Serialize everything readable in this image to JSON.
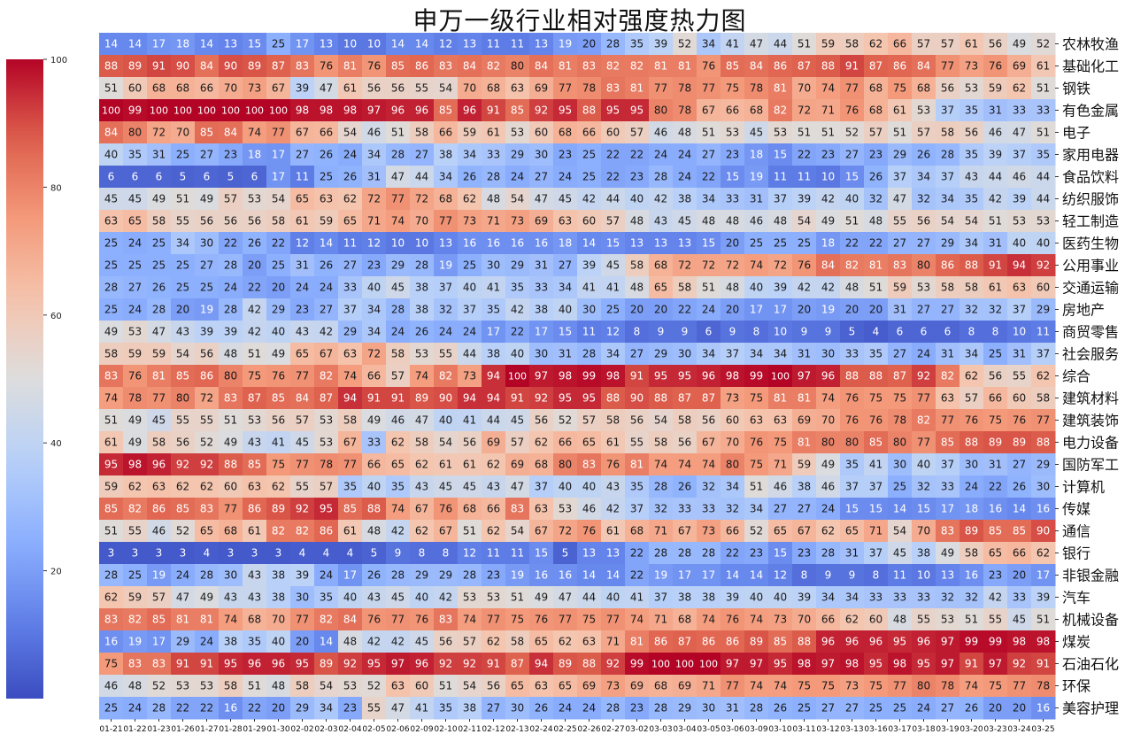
{
  "chart_data": {
    "type": "heatmap",
    "title": "申万一级行业相对强度热力图",
    "xlabel": "",
    "ylabel": "",
    "colormap": "coolwarm",
    "color_range": [
      0,
      100
    ],
    "colorbar_ticks": [
      20,
      40,
      60,
      80,
      100
    ],
    "x": [
      "01-21",
      "01-22",
      "01-23",
      "01-26",
      "01-27",
      "01-28",
      "01-29",
      "01-30",
      "02-02",
      "02-03",
      "02-04",
      "02-05",
      "02-06",
      "02-09",
      "02-10",
      "02-11",
      "02-12",
      "02-13",
      "02-24",
      "02-25",
      "02-26",
      "02-27",
      "03-02",
      "03-03",
      "03-04",
      "03-05",
      "03-06",
      "03-09",
      "03-10",
      "03-11",
      "03-12",
      "03-13",
      "03-16",
      "03-17",
      "03-18",
      "03-19",
      "03-20",
      "03-23",
      "03-24",
      "03-25"
    ],
    "y": [
      "农林牧渔",
      "基础化工",
      "钢铁",
      "有色金属",
      "电子",
      "家用电器",
      "食品饮料",
      "纺织服饰",
      "轻工制造",
      "医药生物",
      "公用事业",
      "交通运输",
      "房地产",
      "商贸零售",
      "社会服务",
      "综合",
      "建筑材料",
      "建筑装饰",
      "电力设备",
      "国防军工",
      "计算机",
      "传媒",
      "通信",
      "银行",
      "非银金融",
      "汽车",
      "机械设备",
      "煤炭",
      "石油石化",
      "环保",
      "美容护理"
    ],
    "values": [
      [
        14,
        14,
        17,
        18,
        14,
        13,
        15,
        25,
        17,
        13,
        10,
        10,
        14,
        14,
        12,
        13,
        11,
        11,
        13,
        19,
        20,
        28,
        35,
        39,
        52,
        34,
        41,
        47,
        44,
        51,
        59,
        58,
        62,
        66,
        57,
        57,
        61,
        56,
        49,
        52
      ],
      [
        88,
        89,
        91,
        90,
        84,
        90,
        89,
        87,
        83,
        76,
        81,
        76,
        85,
        86,
        83,
        84,
        82,
        80,
        84,
        81,
        83,
        82,
        82,
        81,
        81,
        76,
        85,
        84,
        86,
        87,
        88,
        91,
        87,
        86,
        84,
        77,
        73,
        76,
        69,
        61
      ],
      [
        51,
        60,
        68,
        68,
        66,
        70,
        73,
        67,
        39,
        47,
        61,
        56,
        56,
        55,
        54,
        70,
        68,
        63,
        69,
        77,
        78,
        83,
        81,
        77,
        78,
        77,
        75,
        78,
        81,
        70,
        74,
        77,
        68,
        75,
        68,
        56,
        53,
        59,
        62,
        51
      ],
      [
        100,
        99,
        100,
        100,
        100,
        100,
        100,
        100,
        98,
        98,
        98,
        97,
        96,
        96,
        85,
        96,
        91,
        85,
        92,
        95,
        88,
        95,
        95,
        80,
        78,
        67,
        66,
        68,
        82,
        72,
        71,
        76,
        68,
        61,
        53,
        37,
        35,
        31,
        33,
        33
      ],
      [
        84,
        80,
        72,
        70,
        85,
        84,
        74,
        77,
        67,
        66,
        54,
        46,
        51,
        58,
        66,
        59,
        61,
        53,
        60,
        68,
        66,
        60,
        57,
        46,
        48,
        51,
        53,
        45,
        53,
        51,
        51,
        52,
        57,
        51,
        57,
        58,
        56,
        46,
        47,
        51
      ],
      [
        40,
        35,
        31,
        25,
        27,
        23,
        18,
        17,
        27,
        26,
        24,
        34,
        28,
        27,
        38,
        34,
        33,
        29,
        30,
        23,
        25,
        22,
        22,
        24,
        24,
        27,
        23,
        18,
        15,
        22,
        23,
        27,
        23,
        29,
        26,
        28,
        35,
        39,
        37,
        35
      ],
      [
        6,
        6,
        6,
        5,
        6,
        5,
        6,
        17,
        11,
        25,
        26,
        31,
        47,
        44,
        34,
        26,
        28,
        24,
        27,
        24,
        25,
        22,
        23,
        28,
        24,
        22,
        15,
        19,
        11,
        11,
        10,
        15,
        26,
        37,
        34,
        37,
        43,
        44,
        46,
        44
      ],
      [
        45,
        45,
        49,
        51,
        49,
        57,
        53,
        54,
        65,
        63,
        62,
        72,
        77,
        72,
        68,
        62,
        48,
        54,
        47,
        45,
        42,
        44,
        40,
        42,
        38,
        34,
        33,
        31,
        37,
        39,
        42,
        40,
        32,
        47,
        32,
        34,
        35,
        42,
        39,
        44
      ],
      [
        63,
        65,
        58,
        55,
        56,
        56,
        56,
        58,
        61,
        59,
        65,
        71,
        74,
        70,
        77,
        73,
        71,
        73,
        69,
        63,
        60,
        57,
        48,
        43,
        45,
        48,
        48,
        46,
        48,
        54,
        49,
        51,
        48,
        55,
        56,
        54,
        54,
        51,
        53,
        53
      ],
      [
        25,
        24,
        25,
        34,
        30,
        22,
        26,
        22,
        12,
        14,
        11,
        12,
        10,
        10,
        13,
        16,
        16,
        16,
        16,
        18,
        14,
        15,
        13,
        13,
        13,
        15,
        20,
        25,
        25,
        25,
        18,
        22,
        22,
        27,
        27,
        29,
        34,
        31,
        40,
        40
      ],
      [
        25,
        25,
        25,
        25,
        27,
        28,
        20,
        25,
        31,
        26,
        27,
        23,
        29,
        28,
        19,
        25,
        30,
        29,
        31,
        27,
        39,
        45,
        58,
        68,
        72,
        72,
        72,
        74,
        72,
        76,
        84,
        82,
        81,
        83,
        80,
        86,
        88,
        91,
        94,
        92
      ],
      [
        28,
        27,
        26,
        25,
        25,
        24,
        22,
        20,
        24,
        24,
        33,
        40,
        45,
        38,
        37,
        40,
        41,
        35,
        33,
        34,
        41,
        41,
        48,
        65,
        58,
        51,
        48,
        40,
        39,
        42,
        42,
        48,
        51,
        59,
        53,
        58,
        58,
        61,
        63,
        60
      ],
      [
        25,
        24,
        28,
        20,
        19,
        28,
        42,
        29,
        23,
        27,
        37,
        34,
        28,
        38,
        32,
        37,
        35,
        42,
        38,
        40,
        30,
        25,
        20,
        20,
        22,
        24,
        20,
        17,
        17,
        20,
        19,
        20,
        20,
        31,
        27,
        27,
        32,
        32,
        37,
        29
      ],
      [
        49,
        53,
        47,
        43,
        39,
        39,
        42,
        40,
        43,
        42,
        29,
        34,
        24,
        26,
        24,
        24,
        17,
        22,
        17,
        15,
        11,
        12,
        8,
        9,
        9,
        6,
        9,
        8,
        10,
        9,
        9,
        5,
        4,
        6,
        6,
        6,
        8,
        8,
        10,
        11
      ],
      [
        58,
        59,
        59,
        54,
        56,
        48,
        51,
        49,
        65,
        67,
        63,
        72,
        58,
        53,
        55,
        44,
        38,
        40,
        30,
        31,
        28,
        34,
        27,
        29,
        30,
        34,
        37,
        34,
        34,
        31,
        30,
        33,
        35,
        27,
        24,
        31,
        34,
        25,
        31,
        37
      ],
      [
        83,
        76,
        81,
        85,
        86,
        80,
        75,
        76,
        77,
        82,
        74,
        66,
        57,
        74,
        82,
        73,
        94,
        100,
        97,
        98,
        99,
        98,
        91,
        95,
        95,
        96,
        98,
        99,
        100,
        97,
        96,
        88,
        88,
        87,
        92,
        82,
        62,
        56,
        55,
        62
      ],
      [
        74,
        78,
        77,
        80,
        72,
        83,
        87,
        85,
        84,
        87,
        94,
        91,
        91,
        89,
        90,
        94,
        94,
        91,
        92,
        95,
        95,
        88,
        90,
        88,
        87,
        87,
        73,
        75,
        81,
        81,
        74,
        76,
        75,
        75,
        77,
        63,
        57,
        66,
        60,
        58
      ],
      [
        51,
        49,
        45,
        55,
        55,
        51,
        53,
        56,
        57,
        53,
        58,
        49,
        46,
        47,
        40,
        41,
        44,
        45,
        56,
        52,
        57,
        58,
        56,
        54,
        58,
        56,
        60,
        63,
        63,
        69,
        70,
        76,
        76,
        78,
        82,
        77,
        76,
        75,
        76,
        77
      ],
      [
        61,
        49,
        58,
        56,
        52,
        49,
        43,
        41,
        45,
        53,
        67,
        33,
        62,
        58,
        54,
        56,
        69,
        57,
        62,
        66,
        65,
        61,
        55,
        58,
        56,
        67,
        70,
        76,
        75,
        81,
        80,
        80,
        85,
        80,
        77,
        85,
        88,
        89,
        89,
        88
      ],
      [
        95,
        98,
        96,
        92,
        92,
        88,
        85,
        75,
        77,
        78,
        77,
        66,
        65,
        62,
        61,
        61,
        62,
        69,
        68,
        80,
        83,
        76,
        81,
        74,
        74,
        74,
        80,
        75,
        71,
        59,
        49,
        35,
        41,
        30,
        40,
        37,
        30,
        31,
        27,
        29
      ],
      [
        59,
        62,
        63,
        62,
        62,
        60,
        63,
        62,
        55,
        57,
        35,
        40,
        35,
        43,
        45,
        45,
        43,
        47,
        37,
        40,
        40,
        43,
        35,
        28,
        26,
        32,
        34,
        51,
        46,
        38,
        46,
        37,
        37,
        25,
        32,
        33,
        24,
        22,
        26,
        30
      ],
      [
        85,
        82,
        86,
        85,
        83,
        77,
        86,
        89,
        92,
        95,
        85,
        88,
        74,
        67,
        76,
        68,
        66,
        83,
        63,
        53,
        46,
        42,
        37,
        32,
        33,
        33,
        32,
        34,
        27,
        27,
        24,
        15,
        15,
        14,
        15,
        17,
        18,
        16,
        14,
        16
      ],
      [
        51,
        55,
        46,
        52,
        65,
        68,
        61,
        82,
        82,
        86,
        61,
        48,
        42,
        62,
        67,
        51,
        62,
        54,
        67,
        72,
        76,
        61,
        68,
        71,
        67,
        73,
        66,
        52,
        65,
        67,
        62,
        65,
        71,
        54,
        70,
        83,
        89,
        85,
        85,
        90
      ],
      [
        3,
        3,
        3,
        3,
        4,
        3,
        3,
        3,
        4,
        4,
        4,
        5,
        9,
        8,
        8,
        12,
        11,
        11,
        15,
        5,
        13,
        13,
        22,
        28,
        28,
        28,
        22,
        23,
        15,
        23,
        28,
        31,
        37,
        45,
        38,
        49,
        58,
        65,
        66,
        62
      ],
      [
        28,
        25,
        19,
        24,
        28,
        30,
        43,
        38,
        39,
        24,
        17,
        26,
        28,
        29,
        29,
        28,
        23,
        19,
        16,
        16,
        14,
        14,
        22,
        19,
        17,
        17,
        14,
        14,
        12,
        8,
        9,
        9,
        8,
        11,
        10,
        13,
        16,
        23,
        20,
        17
      ],
      [
        62,
        59,
        57,
        47,
        49,
        43,
        43,
        38,
        30,
        35,
        40,
        43,
        45,
        40,
        42,
        53,
        53,
        51,
        49,
        47,
        44,
        40,
        41,
        37,
        38,
        38,
        39,
        40,
        40,
        39,
        34,
        34,
        33,
        33,
        33,
        32,
        32,
        42,
        33,
        39
      ],
      [
        83,
        82,
        85,
        81,
        81,
        74,
        68,
        70,
        77,
        82,
        84,
        76,
        77,
        76,
        83,
        74,
        77,
        75,
        76,
        77,
        75,
        77,
        74,
        71,
        68,
        74,
        76,
        74,
        73,
        70,
        66,
        62,
        60,
        48,
        55,
        53,
        51,
        55,
        45,
        51
      ],
      [
        16,
        19,
        17,
        29,
        24,
        38,
        35,
        40,
        20,
        14,
        48,
        42,
        42,
        45,
        56,
        57,
        62,
        58,
        65,
        62,
        63,
        71,
        81,
        86,
        87,
        86,
        86,
        89,
        85,
        88,
        96,
        96,
        96,
        95,
        96,
        97,
        99,
        99,
        98,
        98
      ],
      [
        75,
        83,
        83,
        91,
        91,
        95,
        96,
        96,
        95,
        89,
        92,
        95,
        97,
        96,
        92,
        92,
        91,
        87,
        94,
        89,
        88,
        92,
        99,
        100,
        100,
        100,
        97,
        97,
        95,
        98,
        97,
        98,
        95,
        98,
        95,
        97,
        91,
        97,
        92,
        91
      ],
      [
        46,
        48,
        52,
        53,
        53,
        58,
        51,
        48,
        58,
        54,
        53,
        52,
        63,
        60,
        51,
        54,
        56,
        65,
        63,
        65,
        69,
        73,
        69,
        68,
        69,
        71,
        77,
        74,
        74,
        75,
        75,
        73,
        75,
        77,
        80,
        78,
        74,
        75,
        77,
        78
      ],
      [
        25,
        24,
        28,
        22,
        22,
        16,
        22,
        20,
        29,
        34,
        23,
        55,
        47,
        41,
        35,
        38,
        27,
        30,
        26,
        24,
        24,
        28,
        23,
        28,
        29,
        30,
        31,
        28,
        26,
        25,
        27,
        27,
        25,
        25,
        24,
        27,
        26,
        20,
        20,
        16
      ]
    ]
  }
}
